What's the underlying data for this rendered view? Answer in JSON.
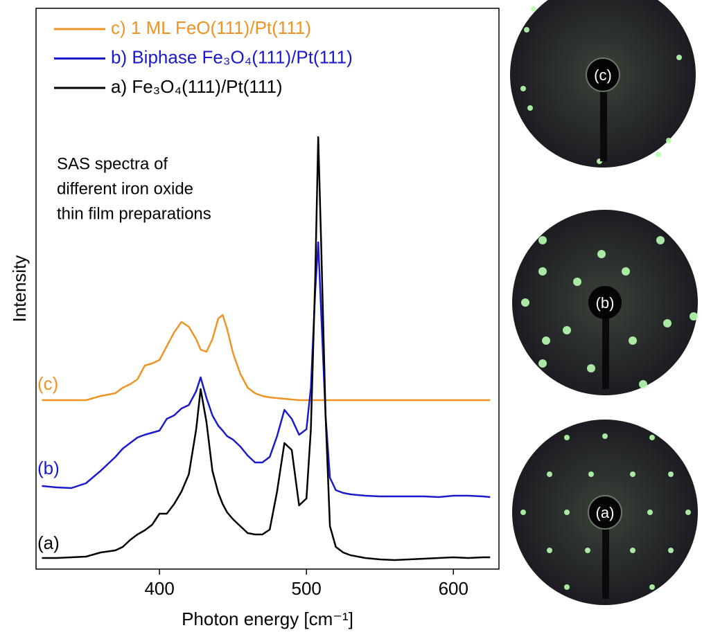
{
  "chart_data": {
    "type": "line",
    "xlabel": "Photon energy [cm⁻¹]",
    "ylabel": "Intensity",
    "annotation": [
      "SAS spectra of",
      "different iron oxide",
      "thin film preparations"
    ],
    "xlim": [
      316,
      631
    ],
    "ylim": [
      0,
      81
    ],
    "xticks": [
      400,
      500,
      600
    ],
    "x": [
      320,
      330,
      340,
      350,
      360,
      370,
      375,
      380,
      385,
      390,
      395,
      400,
      405,
      410,
      415,
      420,
      425,
      428,
      432,
      436,
      440,
      443,
      446,
      450,
      455,
      460,
      465,
      470,
      475,
      480,
      485,
      490,
      495,
      500,
      503,
      506,
      508,
      510,
      513,
      516,
      520,
      525,
      530,
      540,
      550,
      560,
      570,
      580,
      590,
      600,
      610,
      620,
      625
    ],
    "series": [
      {
        "name": "c) 1 ML FeO(111)/Pt(111)",
        "label": "(c)",
        "color": "#ef9324",
        "values": [
          24.4,
          24.4,
          24.4,
          24.4,
          25.0,
          25.4,
          26.2,
          26.7,
          27.4,
          29.4,
          29.7,
          30.2,
          32.2,
          34.2,
          35.7,
          35.0,
          33.2,
          31.7,
          31.4,
          33.2,
          36.2,
          36.7,
          34.7,
          31.2,
          28.2,
          26.2,
          25.4,
          25.0,
          24.8,
          24.7,
          24.6,
          24.5,
          24.4,
          24.4,
          24.4,
          24.4,
          24.4,
          24.4,
          24.4,
          24.4,
          24.4,
          24.4,
          24.4,
          24.4,
          24.4,
          24.4,
          24.4,
          24.4,
          24.4,
          24.4,
          24.4,
          24.4,
          24.4
        ]
      },
      {
        "name": "b) Biphase Fe₃O₄(111)/Pt(111)",
        "label": "(b)",
        "color": "#1a1acc",
        "values": [
          12.0,
          11.8,
          11.7,
          12.4,
          14.2,
          16.2,
          17.4,
          18.2,
          19.0,
          19.4,
          19.7,
          20.0,
          21.7,
          22.2,
          23.2,
          23.7,
          25.7,
          27.7,
          24.7,
          22.2,
          20.7,
          20.0,
          19.2,
          18.7,
          17.7,
          16.4,
          15.4,
          15.4,
          16.2,
          19.2,
          23.0,
          21.7,
          19.4,
          20.2,
          26.2,
          40.2,
          47.2,
          37.2,
          22.2,
          13.2,
          11.4,
          11.0,
          10.8,
          10.6,
          10.5,
          10.5,
          10.5,
          10.5,
          10.4,
          10.6,
          10.6,
          10.5,
          10.4
        ]
      },
      {
        "name": "a) Fe₃O₄(111)/Pt(111)",
        "label": "(a)",
        "color": "#000000",
        "values": [
          1.6,
          1.6,
          1.7,
          1.8,
          2.4,
          2.7,
          3.2,
          4.2,
          5.0,
          5.6,
          6.4,
          8.0,
          8.0,
          9.4,
          11.2,
          13.7,
          20.2,
          26.0,
          21.2,
          14.2,
          11.0,
          9.4,
          8.2,
          7.2,
          6.2,
          5.2,
          5.0,
          5.0,
          5.7,
          11.2,
          18.2,
          17.2,
          9.2,
          10.2,
          20.2,
          42.2,
          62.4,
          47.2,
          22.2,
          6.2,
          3.2,
          2.4,
          2.0,
          1.6,
          1.4,
          1.3,
          1.4,
          1.5,
          1.6,
          1.7,
          1.6,
          1.7,
          1.7
        ]
      }
    ],
    "images": [
      {
        "label": "(c)"
      },
      {
        "label": "(b)"
      },
      {
        "label": "(a)"
      }
    ]
  }
}
